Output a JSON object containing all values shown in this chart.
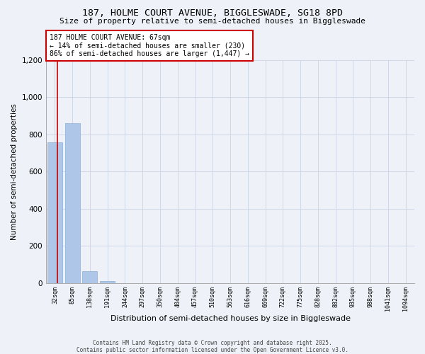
{
  "title_line1": "187, HOLME COURT AVENUE, BIGGLESWADE, SG18 8PD",
  "title_line2": "Size of property relative to semi-detached houses in Biggleswade",
  "xlabel": "Distribution of semi-detached houses by size in Biggleswade",
  "ylabel": "Number of semi-detached properties",
  "footer_line1": "Contains HM Land Registry data © Crown copyright and database right 2025.",
  "footer_line2": "Contains public sector information licensed under the Open Government Licence v3.0.",
  "categories": [
    "32sqm",
    "85sqm",
    "138sqm",
    "191sqm",
    "244sqm",
    "297sqm",
    "350sqm",
    "404sqm",
    "457sqm",
    "510sqm",
    "563sqm",
    "616sqm",
    "669sqm",
    "722sqm",
    "775sqm",
    "828sqm",
    "882sqm",
    "935sqm",
    "988sqm",
    "1041sqm",
    "1094sqm"
  ],
  "values": [
    755,
    860,
    65,
    10,
    0,
    0,
    0,
    0,
    0,
    0,
    0,
    0,
    0,
    0,
    0,
    0,
    0,
    0,
    0,
    0,
    0
  ],
  "bar_color": "#aec6e8",
  "annotation_text": "187 HOLME COURT AVENUE: 67sqm\n← 14% of semi-detached houses are smaller (230)\n86% of semi-detached houses are larger (1,447) →",
  "annotation_box_color": "#ffffff",
  "annotation_box_edge_color": "#cc0000",
  "ylim": [
    0,
    1200
  ],
  "yticks": [
    0,
    200,
    400,
    600,
    800,
    1000,
    1200
  ],
  "grid_color": "#d0d8e8",
  "background_color": "#eef2f8"
}
